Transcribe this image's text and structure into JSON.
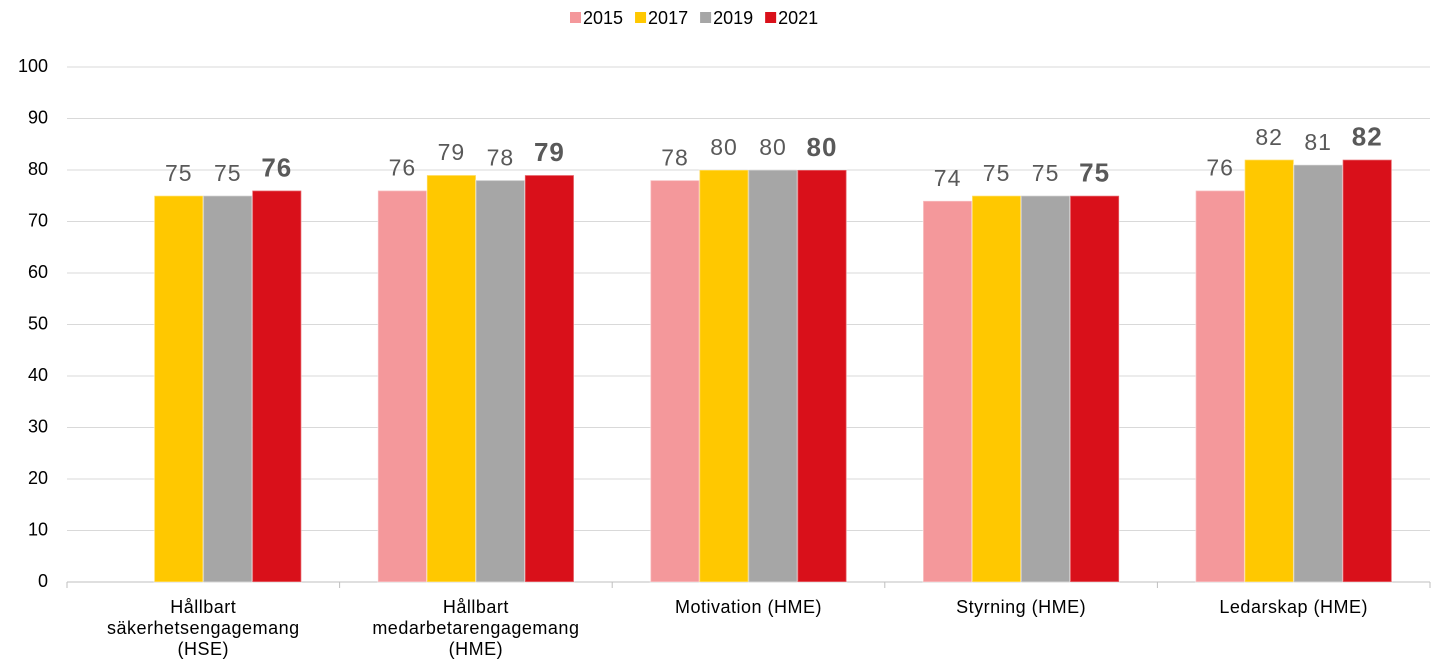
{
  "chart_data": {
    "type": "bar",
    "categories": [
      "Hållbart\nsäkerhetsengagemang\n(HSE)",
      "Hållbart\nmedarbetarengagemang\n(HME)",
      "Motivation (HME)",
      "Styrning (HME)",
      "Ledarskap (HME)"
    ],
    "series": [
      {
        "name": "2015",
        "color": "#f4989b",
        "values": [
          null,
          76,
          78,
          74,
          76
        ]
      },
      {
        "name": "2017",
        "color": "#ffc800",
        "values": [
          75,
          79,
          80,
          75,
          82
        ]
      },
      {
        "name": "2019",
        "color": "#a6a6a6",
        "values": [
          75,
          78,
          80,
          75,
          81
        ]
      },
      {
        "name": "2021",
        "color": "#d9101a",
        "values": [
          76,
          79,
          80,
          75,
          82
        ]
      }
    ],
    "ylim": [
      0,
      100
    ],
    "yticks": [
      0,
      10,
      20,
      30,
      40,
      50,
      60,
      70,
      80,
      90,
      100
    ],
    "grid": true,
    "legend": "top"
  }
}
